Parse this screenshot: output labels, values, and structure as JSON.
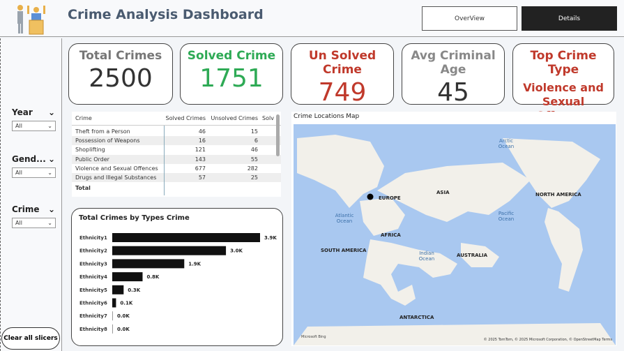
{
  "header": {
    "title": "Crime Analysis Dashboard",
    "nav": [
      {
        "label": "OverView",
        "active": false
      },
      {
        "label": "Details",
        "active": true
      }
    ]
  },
  "slicers": [
    {
      "label": "Year",
      "value": "All"
    },
    {
      "label": "Gend...",
      "value": "All"
    },
    {
      "label": "Crime",
      "value": "All"
    }
  ],
  "clear_label": "Clear all slicers",
  "cards": [
    {
      "title": "Total Crimes",
      "value": "2500",
      "title_color": "#777777",
      "value_color": "#333333"
    },
    {
      "title": "Solved Crime",
      "value": "1751",
      "title_color": "#2eaa55",
      "value_color": "#2eaa55"
    },
    {
      "title": "Un Solved Crime",
      "value": "749",
      "title_color": "#c0392b",
      "value_color": "#c0392b"
    },
    {
      "title": "Avg Criminal Age",
      "value": "45",
      "title_color": "#888888",
      "value_color": "#333333"
    },
    {
      "title": "Top Crime Type",
      "value": "Violence and Sexual Offences",
      "title_color": "#c0392b",
      "value_color": "#c0392b"
    }
  ],
  "table": {
    "headers": [
      "Crime",
      "Solved Crimes",
      "Unsolved Crimes",
      "Solv"
    ],
    "rows": [
      [
        "Theft from a Person",
        "46",
        "15"
      ],
      [
        "Possession of Weapons",
        "16",
        "6"
      ],
      [
        "Shoplifting",
        "121",
        "46"
      ],
      [
        "Public Order",
        "143",
        "55"
      ],
      [
        "Violence and Sexual Offences",
        "677",
        "282"
      ],
      [
        "Drugs and Illegal Substances",
        "57",
        "25"
      ]
    ],
    "total_label": "Total"
  },
  "chart_data": {
    "type": "bar",
    "title": "Total Crimes by Types Crime",
    "categories": [
      "Ethnicity1",
      "Ethnicity2",
      "Ethnicity3",
      "Ethnicity4",
      "Ethnicity5",
      "Ethnicity6",
      "Ethnicity7",
      "Ethnicity8"
    ],
    "values": [
      3.9,
      3.0,
      1.9,
      0.8,
      0.3,
      0.1,
      0.0,
      0.0
    ],
    "labels": [
      "3.9K",
      "3.0K",
      "1.9K",
      "0.8K",
      "0.3K",
      "0.1K",
      "0.0K",
      "0.0K"
    ],
    "unit": "K",
    "orientation": "horizontal",
    "color": "#111111"
  },
  "map": {
    "title": "Crime Locations Map",
    "continents": [
      "NORTH AMERICA",
      "EUROPE",
      "ASIA",
      "AFRICA",
      "SOUTH AMERICA",
      "AUSTRALIA",
      "ANTARCTICA"
    ],
    "oceans": [
      "Arctic Ocean",
      "Atlantic Ocean",
      "Pacific Ocean",
      "Indian Ocean"
    ],
    "attribution": "© 2025 TomTom, © 2025 Microsoft Corporation, © OpenStreetMap  Terms",
    "brand": "Microsoft Bing",
    "water_color": "#a9c8f0",
    "land_color": "#f2f0ea"
  }
}
